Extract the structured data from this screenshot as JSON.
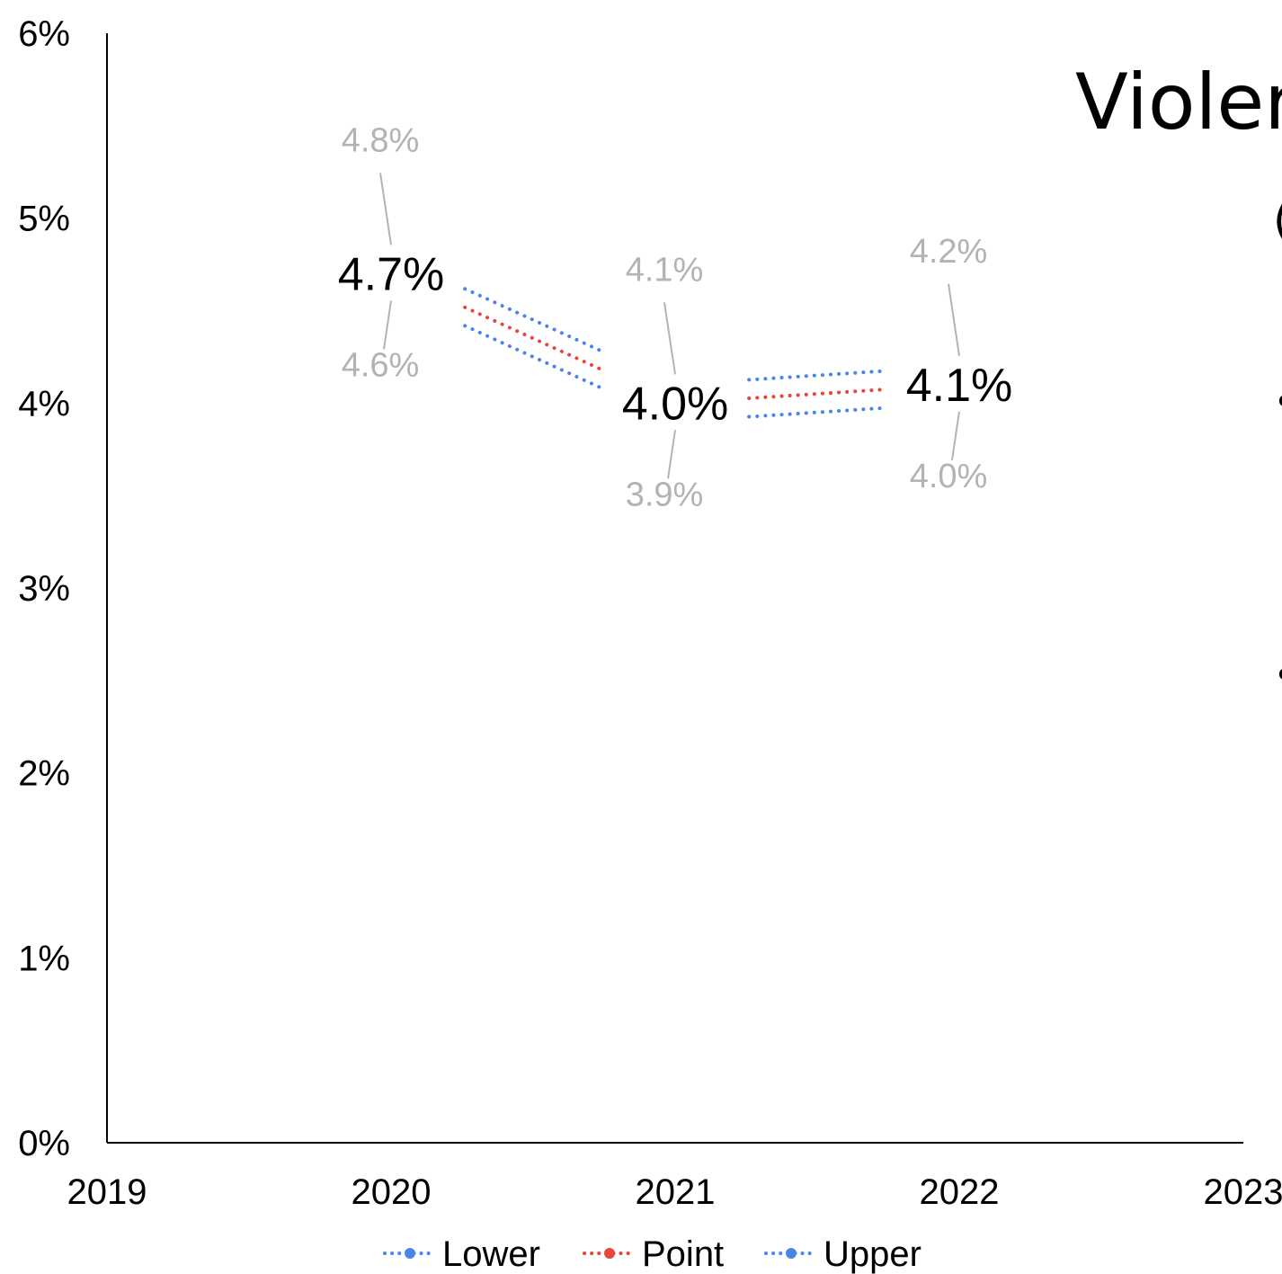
{
  "chart_data": {
    "type": "line",
    "x": [
      2020,
      2021,
      2022
    ],
    "series": [
      {
        "name": "Lower",
        "color": "#4a86e8",
        "values": [
          4.6,
          3.9,
          4.0
        ]
      },
      {
        "name": "Point",
        "color": "#e8453c",
        "values": [
          4.7,
          4.0,
          4.1
        ]
      },
      {
        "name": "Upper",
        "color": "#4a86e8",
        "values": [
          4.8,
          4.1,
          4.2
        ]
      }
    ],
    "point_labels": [
      "4.7%",
      "4.0%",
      "4.1%"
    ],
    "lower_labels": [
      "4.6%",
      "3.9%",
      "4.0%"
    ],
    "upper_labels": [
      "4.8%",
      "4.1%",
      "4.2%"
    ],
    "xlim": [
      2019,
      2023
    ],
    "ylim": [
      0,
      6
    ],
    "x_ticks": [
      "2019",
      "2020",
      "2021",
      "2022",
      "2023"
    ],
    "y_ticks": [
      "0%",
      "1%",
      "2%",
      "3%",
      "4%",
      "5%",
      "6%"
    ],
    "grid": false,
    "legend_position": "bottom",
    "legend": [
      "Lower",
      "Point",
      "Upper"
    ]
  },
  "overlay": {
    "title_fragment": "Violer",
    "subtitle_fragment": "(",
    "bullet_fragments": [
      "•",
      "•"
    ]
  }
}
